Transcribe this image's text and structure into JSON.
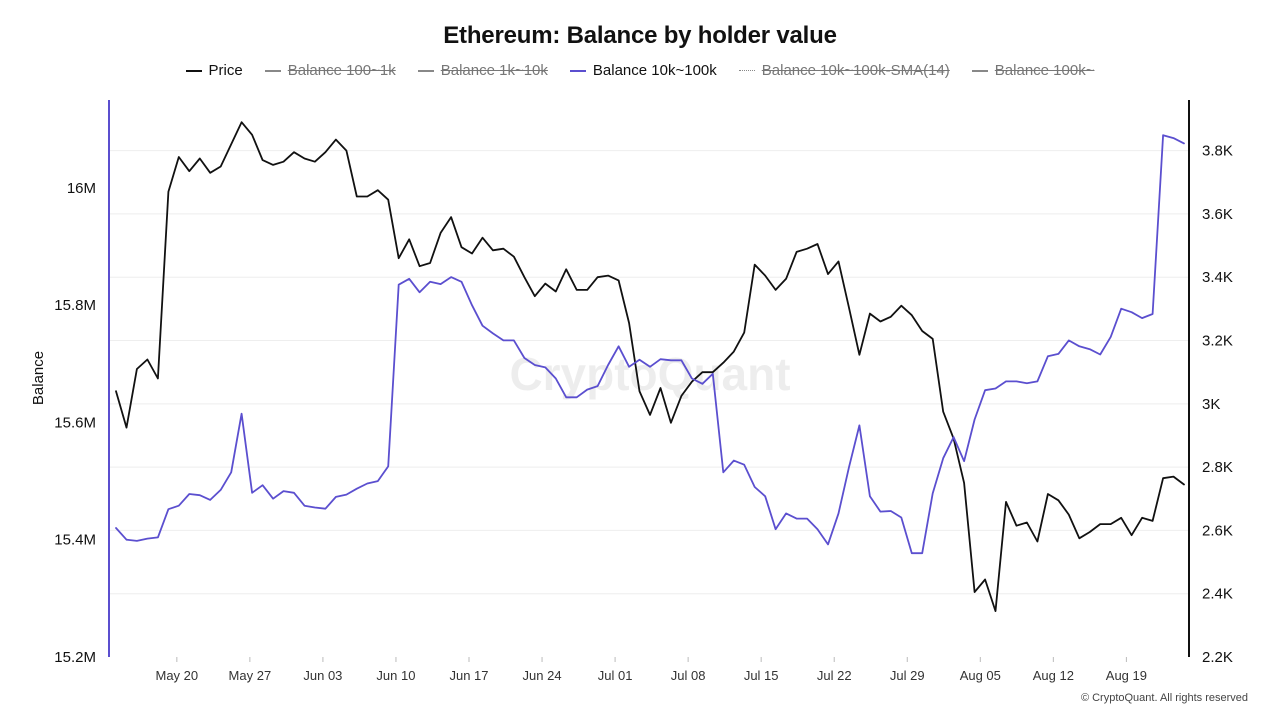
{
  "title": "Ethereum: Balance by holder value",
  "legend": [
    {
      "label": "Price",
      "color": "#111111",
      "hidden": false,
      "style": "solid"
    },
    {
      "label": "Balance 100~1k",
      "color": "#888888",
      "hidden": true,
      "style": "solid"
    },
    {
      "label": "Balance 1k~10k",
      "color": "#888888",
      "hidden": true,
      "style": "solid"
    },
    {
      "label": "Balance 10k~100k",
      "color": "#5b4fcf",
      "hidden": false,
      "style": "solid"
    },
    {
      "label": "Balance 10k~100k-SMA(14)",
      "color": "#888888",
      "hidden": true,
      "style": "dotted"
    },
    {
      "label": "Balance 100k~",
      "color": "#888888",
      "hidden": true,
      "style": "solid"
    }
  ],
  "watermark": "CryptoQuant",
  "copyright": "© CryptoQuant. All rights reserved",
  "chart_data": {
    "type": "line",
    "title": "Ethereum: Balance by holder value",
    "x_ticks": [
      "May 20",
      "May 27",
      "Jun 03",
      "Jun 10",
      "Jun 17",
      "Jun 24",
      "Jul 01",
      "Jul 08",
      "Jul 15",
      "Jul 22",
      "Jul 29",
      "Aug 05",
      "Aug 12",
      "Aug 19"
    ],
    "x_range_days": [
      -6.5,
      97
    ],
    "left_axis": {
      "label": "Balance",
      "range": [
        15200000,
        16150000
      ],
      "ticks": [
        15200000,
        15400000,
        15600000,
        15800000,
        16000000
      ],
      "tick_labels": [
        "15.2M",
        "15.4M",
        "15.6M",
        "15.8M",
        "16M"
      ]
    },
    "right_axis": {
      "label": "",
      "range": [
        2200,
        3960
      ],
      "ticks": [
        2200,
        2400,
        2600,
        2800,
        3000,
        3200,
        3400,
        3600,
        3800
      ],
      "tick_labels": [
        "2.2K",
        "2.4K",
        "2.6K",
        "2.8K",
        "3K",
        "3.2K",
        "3.4K",
        "3.6K",
        "3.8K"
      ]
    },
    "grid": true,
    "series": [
      {
        "name": "Price",
        "axis": "right",
        "color": "#111111",
        "values": [
          3040,
          2925,
          3110,
          3140,
          3080,
          3670,
          3780,
          3735,
          3775,
          3730,
          3750,
          3820,
          3890,
          3850,
          3770,
          3755,
          3765,
          3795,
          3775,
          3765,
          3795,
          3835,
          3800,
          3655,
          3655,
          3675,
          3645,
          3460,
          3520,
          3435,
          3445,
          3540,
          3590,
          3495,
          3475,
          3525,
          3485,
          3490,
          3465,
          3400,
          3340,
          3380,
          3355,
          3425,
          3360,
          3360,
          3400,
          3405,
          3390,
          3255,
          3040,
          2965,
          3050,
          2940,
          3025,
          3070,
          3100,
          3100,
          3130,
          3165,
          3225,
          3440,
          3405,
          3360,
          3395,
          3480,
          3490,
          3505,
          3410,
          3450,
          3305,
          3155,
          3285,
          3260,
          3275,
          3310,
          3280,
          3230,
          3205,
          2975,
          2890,
          2750,
          2405,
          2445,
          2345,
          2690,
          2615,
          2625,
          2565,
          2715,
          2695,
          2650,
          2575,
          2595,
          2620,
          2620,
          2640,
          2585,
          2640,
          2630,
          2765,
          2770,
          2745
        ]
      },
      {
        "name": "Balance 10k~100k",
        "axis": "left",
        "color": "#5b4fcf",
        "values": [
          15420000,
          15400000,
          15398000,
          15402000,
          15404000,
          15452000,
          15458000,
          15478000,
          15476000,
          15468000,
          15485000,
          15515000,
          15615000,
          15480000,
          15493000,
          15470000,
          15483000,
          15480000,
          15458000,
          15455000,
          15453000,
          15473000,
          15477000,
          15487000,
          15496000,
          15500000,
          15525000,
          15835000,
          15845000,
          15822000,
          15840000,
          15836000,
          15848000,
          15840000,
          15800000,
          15765000,
          15752000,
          15740000,
          15740000,
          15710000,
          15698000,
          15694000,
          15675000,
          15643000,
          15643000,
          15656000,
          15662000,
          15698000,
          15730000,
          15695000,
          15707000,
          15695000,
          15708000,
          15706000,
          15706000,
          15675000,
          15666000,
          15683000,
          15515000,
          15535000,
          15528000,
          15490000,
          15474000,
          15418000,
          15445000,
          15436000,
          15436000,
          15418000,
          15392000,
          15445000,
          15523000,
          15595000,
          15474000,
          15448000,
          15449000,
          15438000,
          15377000,
          15377000,
          15479000,
          15539000,
          15575000,
          15534000,
          15605000,
          15655000,
          15658000,
          15670000,
          15670000,
          15667000,
          15670000,
          15713000,
          15717000,
          15740000,
          15730000,
          15725000,
          15716000,
          15746000,
          15794000,
          15788000,
          15778000,
          15785000,
          16090000,
          16085000,
          16076000
        ]
      }
    ]
  }
}
